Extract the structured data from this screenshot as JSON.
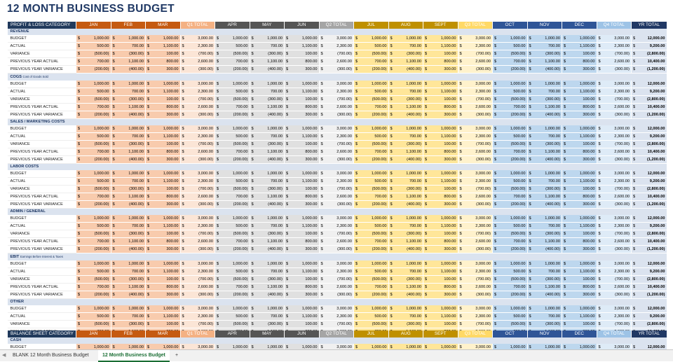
{
  "title": "12 MONTH BUSINESS BUDGET",
  "pl_table": {
    "category_header": "PROFIT & LOSS CATEGORY",
    "months": [
      "JAN",
      "FEB",
      "MAR",
      "Q1 TOTAL",
      "APR",
      "MAY",
      "JUN",
      "Q2 TOTAL",
      "JUL",
      "AUG",
      "SEPT",
      "Q3 TOTAL",
      "OCT",
      "NOV",
      "DEC",
      "Q4 TOTAL",
      "YR TOTAL"
    ]
  },
  "row_labels": [
    "BUDGET",
    "ACTUAL",
    "VARIANCE",
    "PREVIOUS YEAR ACTUAL",
    "PREVIOUS YEAR VARIANCE"
  ],
  "sections": [
    {
      "title": "REVENUE",
      "subtitle": ""
    },
    {
      "title": "COGS",
      "subtitle": "Cost of Goods Sold"
    },
    {
      "title": "SALES / MARKETING COSTS",
      "subtitle": ""
    },
    {
      "title": "LABOR COSTS",
      "subtitle": ""
    },
    {
      "title": "ADMIN / GENERAL",
      "subtitle": ""
    },
    {
      "title": "EBIT",
      "subtitle": "Earnings Before Interest &  Taxes"
    },
    {
      "title": "OTHER",
      "subtitle": ""
    }
  ],
  "row_values": [
    [
      "1,000.00",
      "1,000.00",
      "1,000.00",
      "3,000.00",
      "1,000.00",
      "1,000.00",
      "1,000.00",
      "3,000.00",
      "1,000.00",
      "1,000.00",
      "1,000.00",
      "3,000.00",
      "1,000.00",
      "1,000.00",
      "1,000.00",
      "3,000.00",
      "12,000.00"
    ],
    [
      "500.00",
      "700.00",
      "1,100.00",
      "2,300.00",
      "500.00",
      "700.00",
      "1,100.00",
      "2,300.00",
      "500.00",
      "700.00",
      "1,100.00",
      "2,300.00",
      "500.00",
      "700.00",
      "1,100.00",
      "2,300.00",
      "9,200.00"
    ],
    [
      "(500.00)",
      "(300.00)",
      "100.00",
      "(700.00)",
      "(500.00)",
      "(300.00)",
      "100.00",
      "(700.00)",
      "(500.00)",
      "(300.00)",
      "100.00",
      "(700.00)",
      "(500.00)",
      "(300.00)",
      "100.00",
      "(700.00)",
      "(2,800.00)"
    ],
    [
      "700.00",
      "1,100.00",
      "800.00",
      "2,600.00",
      "700.00",
      "1,100.00",
      "800.00",
      "2,600.00",
      "700.00",
      "1,100.00",
      "800.00",
      "2,600.00",
      "700.00",
      "1,100.00",
      "800.00",
      "2,600.00",
      "10,400.00"
    ],
    [
      "(200.00)",
      "(400.00)",
      "300.00",
      "(300.00)",
      "(200.00)",
      "(400.00)",
      "300.00",
      "(300.00)",
      "(200.00)",
      "(400.00)",
      "300.00",
      "(300.00)",
      "(200.00)",
      "(400.00)",
      "300.00",
      "(300.00)",
      "(1,200.00)"
    ]
  ],
  "balance_table": {
    "category_header": "BALANCE SHEET CATEGORY",
    "section": "CASH",
    "row_label": "BUDGET",
    "values": [
      "1,000.00",
      "1,000.00",
      "1,000.00",
      "3,000.00",
      "1,000.00",
      "1,000.00",
      "1,000.00",
      "3,000.00",
      "1,000.00",
      "1,000.00",
      "1,000.00",
      "3,000.00",
      "1,000.00",
      "1,000.00",
      "1,000.00",
      "3,000.00",
      "12,000.00"
    ]
  },
  "currency_symbol": "$",
  "header_colors": [
    "#c55a11",
    "#c55a11",
    "#c55a11",
    "#f4b183",
    "#555555",
    "#555555",
    "#555555",
    "#a5a5a5",
    "#bf9000",
    "#bf9000",
    "#bf9000",
    "#ffd966",
    "#2f5597",
    "#2f5597",
    "#2f5597",
    "#9dc3e6",
    "#203864"
  ],
  "body_colors": [
    "#f8cbad",
    "#f8cbad",
    "#f8cbad",
    "#fbe5d6",
    "#e0e0e0",
    "#e0e0e0",
    "#e0e0e0",
    "#f0f0f0",
    "#ffe699",
    "#ffe699",
    "#ffe699",
    "#fff2cc",
    "#bdd7ee",
    "#bdd7ee",
    "#bdd7ee",
    "#deebf7",
    "#dbe3ef"
  ],
  "sheet_tabs": {
    "inactive": "BLANK 12 Month Business Budget",
    "active": "12 Month Business Budget",
    "add": "+"
  }
}
